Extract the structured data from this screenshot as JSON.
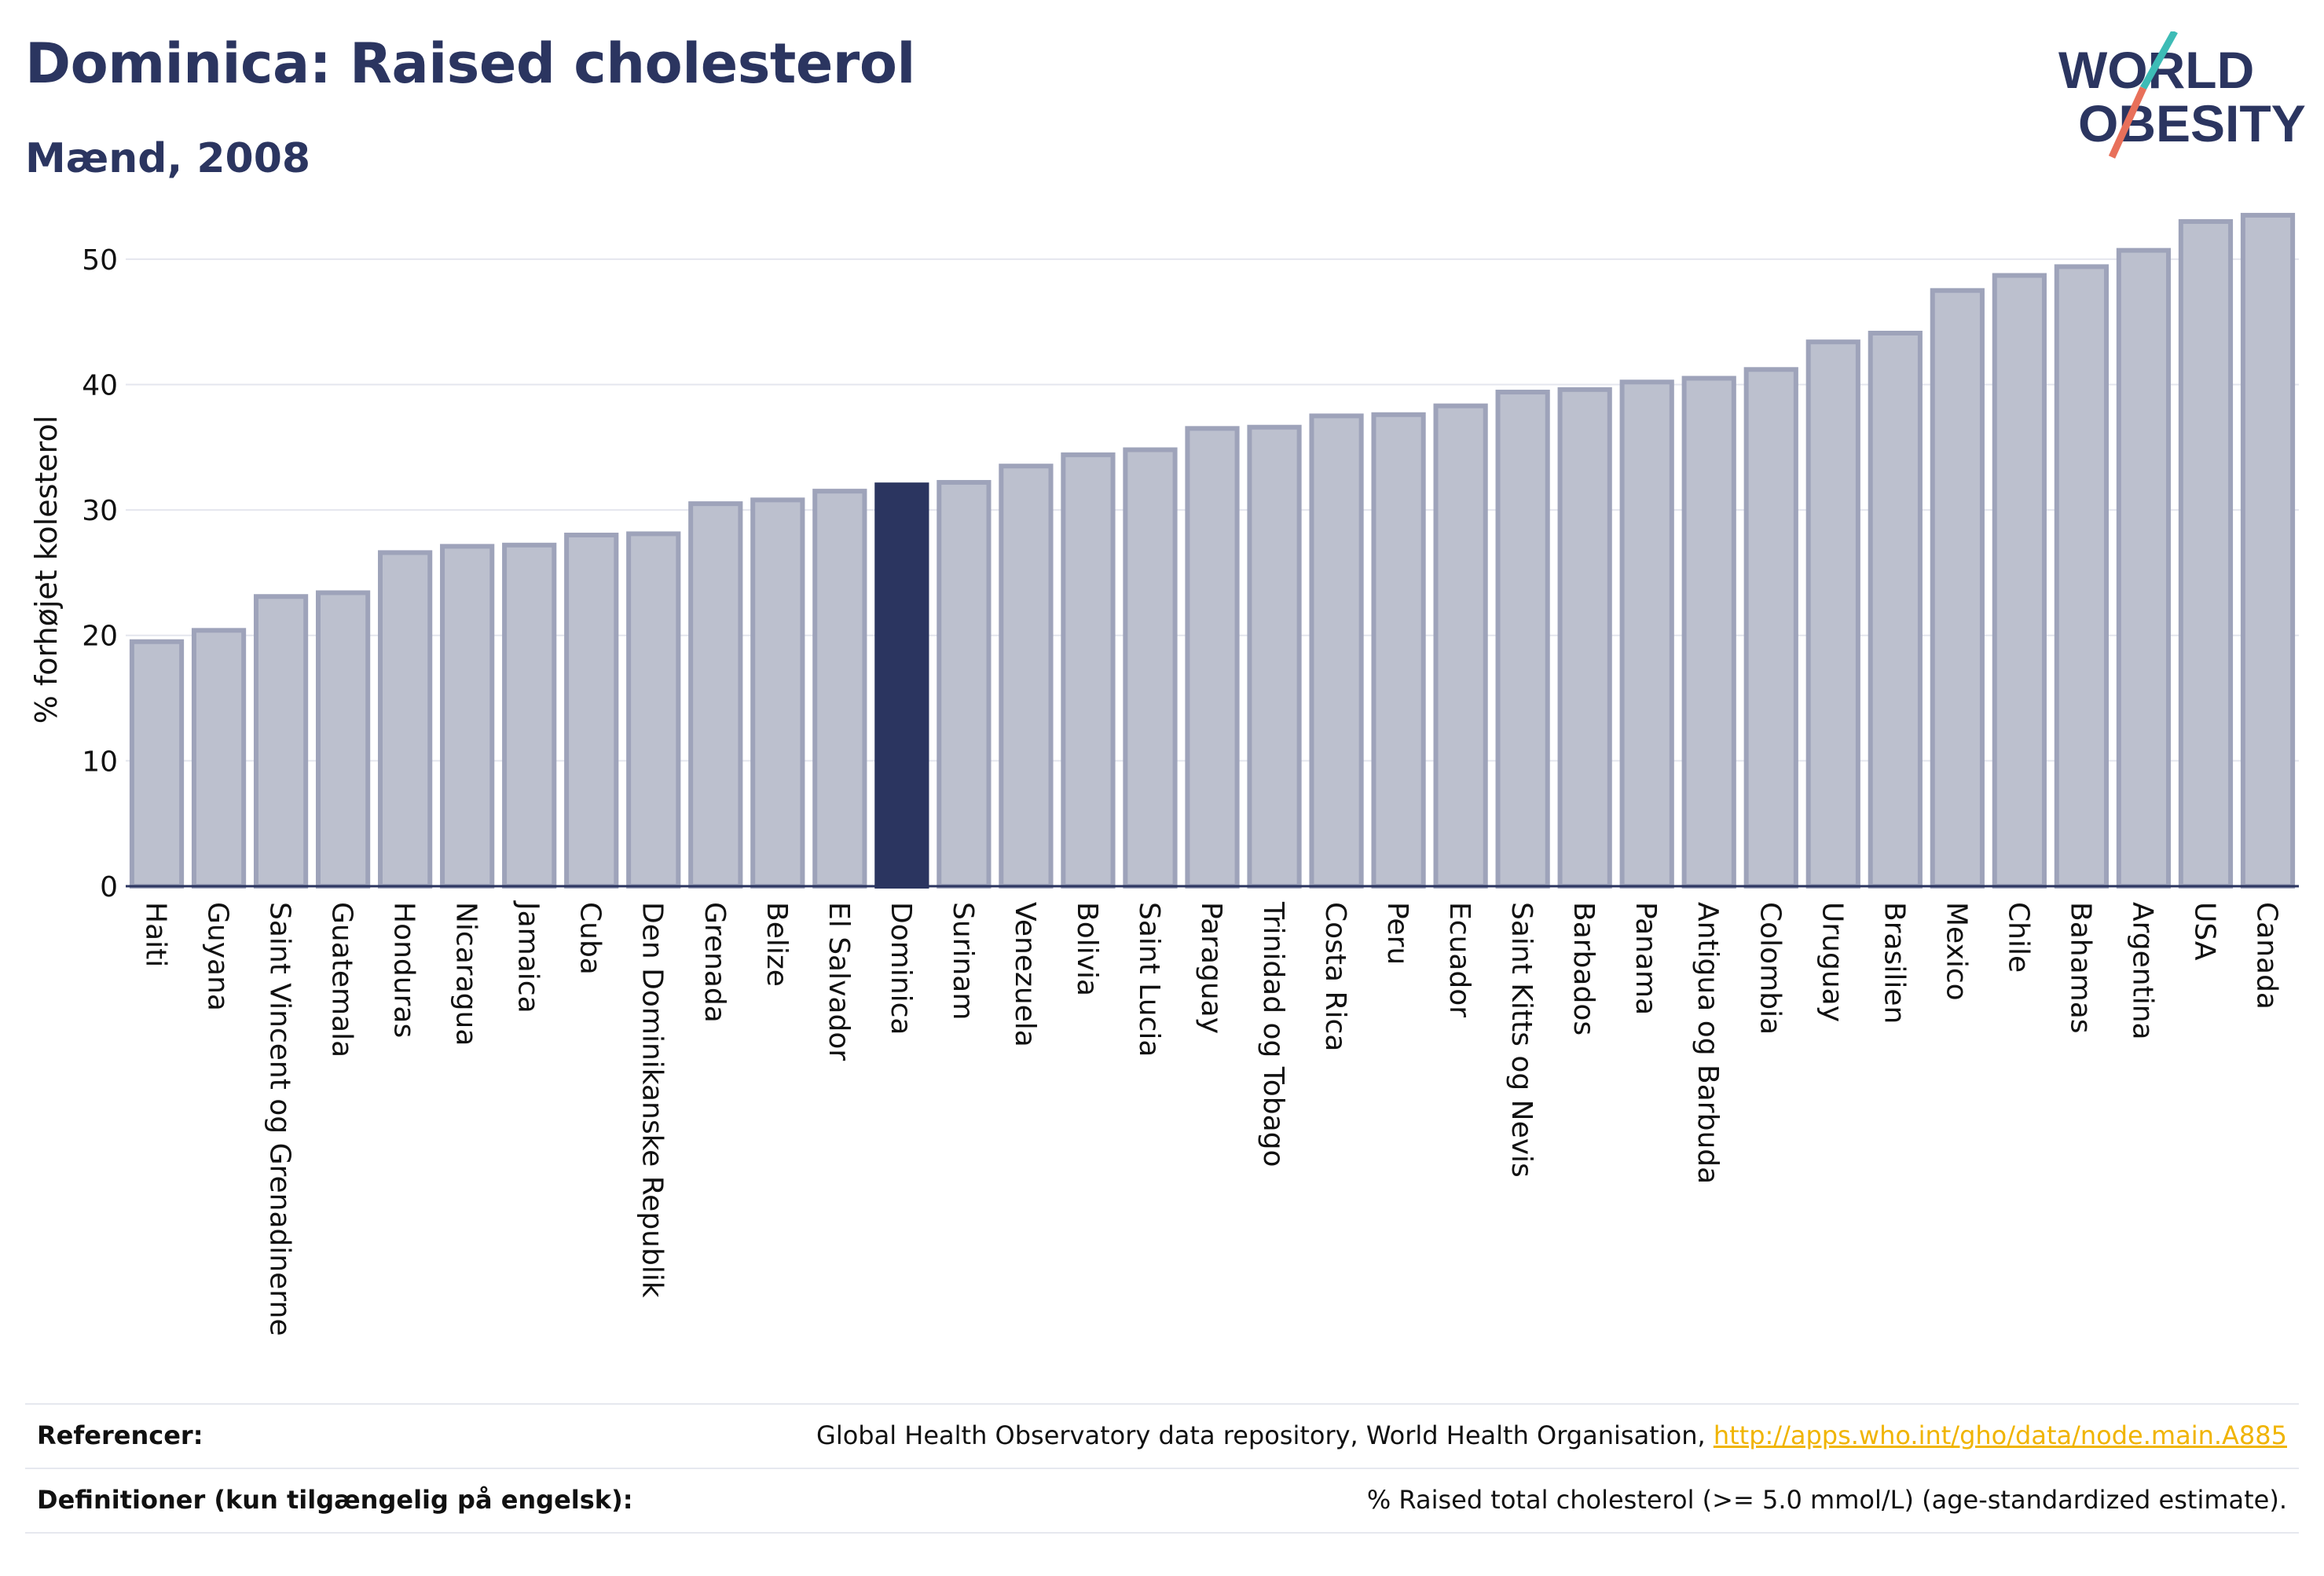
{
  "header": {
    "title": "Dominica: Raised cholesterol",
    "subtitle": "Mænd, 2008",
    "logo_line1": "WORLD",
    "logo_line2": "OBESITY"
  },
  "colors": {
    "bar": "#bcc0ce",
    "bar_border": "#9ea3ba",
    "highlight": "#2b3560",
    "title": "#2b3560",
    "link": "#f0b400",
    "logo_slash_teal": "#3dbcb6",
    "logo_slash_red": "#e8705a"
  },
  "chart_data": {
    "type": "bar",
    "ylabel": "% forhøjet kolesterol",
    "ylim": [
      0,
      55
    ],
    "yticks": [
      0,
      10,
      20,
      30,
      40,
      50
    ],
    "grid": true,
    "highlight": "Dominica",
    "categories": [
      "Haiti",
      "Guyana",
      "Saint Vincent og Grenadinerne",
      "Guatemala",
      "Honduras",
      "Nicaragua",
      "Jamaica",
      "Cuba",
      "Den Dominikanske Republik",
      "Grenada",
      "Belize",
      "El Salvador",
      "Dominica",
      "Surinam",
      "Venezuela",
      "Bolivia",
      "Saint Lucia",
      "Paraguay",
      "Trinidad og Tobago",
      "Costa Rica",
      "Peru",
      "Ecuador",
      "Saint Kitts og Nevis",
      "Barbados",
      "Panama",
      "Antigua og Barbuda",
      "Colombia",
      "Uruguay",
      "Brasilien",
      "Mexico",
      "Chile",
      "Bahamas",
      "Argentina",
      "USA",
      "Canada"
    ],
    "values": [
      19.5,
      20.4,
      23.1,
      23.4,
      26.6,
      27.1,
      27.2,
      28.0,
      28.1,
      30.5,
      30.8,
      31.5,
      32.0,
      32.2,
      33.5,
      34.4,
      34.8,
      36.5,
      36.6,
      37.5,
      37.6,
      38.3,
      39.4,
      39.6,
      40.2,
      40.5,
      41.2,
      43.4,
      44.1,
      47.5,
      48.7,
      49.4,
      50.7,
      53.0,
      53.5
    ]
  },
  "footer": {
    "references_label": "Referencer:",
    "references_text": "Global Health Observatory data repository, World Health Organisation, ",
    "references_link": "http://apps.who.int/gho/data/node.main.A885",
    "definitions_label": "Definitioner (kun tilgængelig på engelsk):",
    "definitions_text": "% Raised total cholesterol (>= 5.0 mmol/L) (age-standardized estimate)."
  }
}
